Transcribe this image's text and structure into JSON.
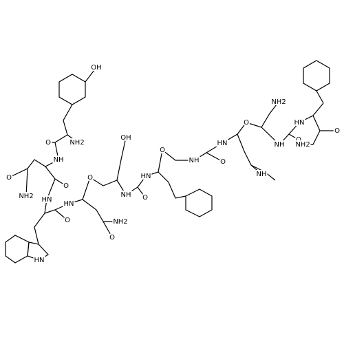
{
  "atoms": [
    "OH",
    "NH2",
    "O",
    "NH",
    "O",
    "NH2",
    "O",
    "HN",
    "O",
    "HN",
    "O",
    "NH2",
    "O",
    "OH",
    "NH",
    "O",
    "HN",
    "O",
    "NH",
    "O",
    "HN",
    "O",
    "NH",
    "NH2",
    "NH",
    "O",
    "HN",
    "NH2",
    "O",
    "HN"
  ]
}
